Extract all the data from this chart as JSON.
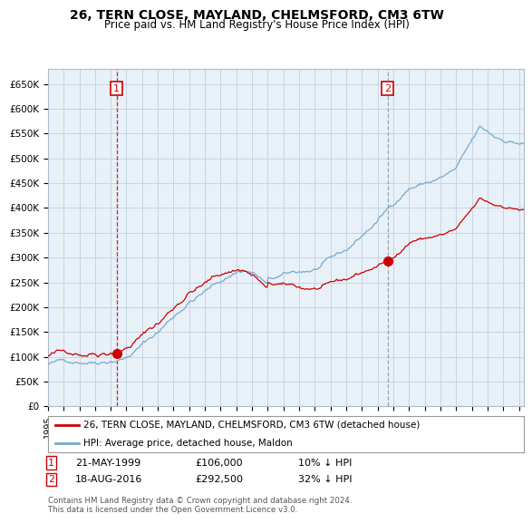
{
  "title": "26, TERN CLOSE, MAYLAND, CHELMSFORD, CM3 6TW",
  "subtitle": "Price paid vs. HM Land Registry's House Price Index (HPI)",
  "ylim": [
    0,
    680000
  ],
  "xlim_start": 1995.0,
  "xlim_end": 2025.3,
  "line1_color": "#cc0000",
  "line2_color": "#77aacc",
  "chart_bg": "#e8f0f8",
  "sale1_x": 1999.38,
  "sale1_y": 106000,
  "sale2_x": 2016.63,
  "sale2_y": 292500,
  "vline1_color": "#cc0000",
  "vline2_color": "#8899aa",
  "legend_line1": "26, TERN CLOSE, MAYLAND, CHELMSFORD, CM3 6TW (detached house)",
  "legend_line2": "HPI: Average price, detached house, Maldon",
  "annot1_date": "21-MAY-1999",
  "annot1_price": "£106,000",
  "annot1_hpi": "10% ↓ HPI",
  "annot2_date": "18-AUG-2016",
  "annot2_price": "£292,500",
  "annot2_hpi": "32% ↓ HPI",
  "footer": "Contains HM Land Registry data © Crown copyright and database right 2024.\nThis data is licensed under the Open Government Licence v3.0.",
  "background_color": "#ffffff",
  "grid_color": "#c8d4e0"
}
